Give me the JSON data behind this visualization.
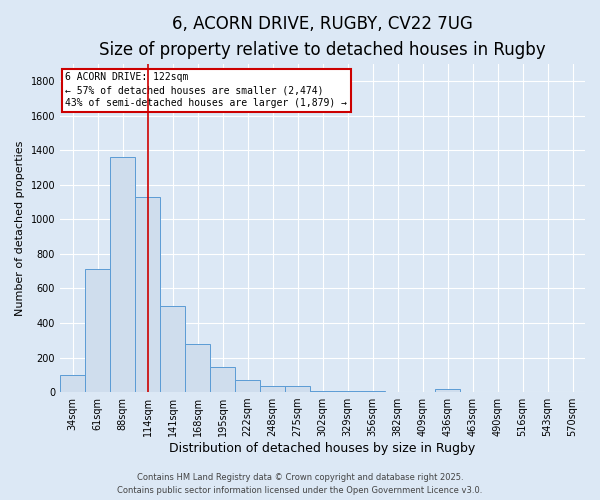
{
  "title1": "6, ACORN DRIVE, RUGBY, CV22 7UG",
  "title2": "Size of property relative to detached houses in Rugby",
  "xlabel": "Distribution of detached houses by size in Rugby",
  "ylabel": "Number of detached properties",
  "bar_labels": [
    "34sqm",
    "61sqm",
    "88sqm",
    "114sqm",
    "141sqm",
    "168sqm",
    "195sqm",
    "222sqm",
    "248sqm",
    "275sqm",
    "302sqm",
    "329sqm",
    "356sqm",
    "382sqm",
    "409sqm",
    "436sqm",
    "463sqm",
    "490sqm",
    "516sqm",
    "543sqm",
    "570sqm"
  ],
  "bar_values": [
    100,
    710,
    1360,
    1130,
    500,
    278,
    148,
    70,
    38,
    35,
    8,
    5,
    4,
    3,
    2,
    20,
    2,
    0,
    0,
    0,
    0
  ],
  "bar_color": "#cfdded",
  "bar_edge_color": "#5b9bd5",
  "ylim": [
    0,
    1900
  ],
  "yticks": [
    0,
    200,
    400,
    600,
    800,
    1000,
    1200,
    1400,
    1600,
    1800
  ],
  "red_line_x": 3,
  "annotation_text": "6 ACORN DRIVE: 122sqm\n← 57% of detached houses are smaller (2,474)\n43% of semi-detached houses are larger (1,879) →",
  "annotation_box_color": "#ffffff",
  "annotation_box_edge": "#cc0000",
  "red_line_color": "#cc0000",
  "background_color": "#dce8f5",
  "plot_bg_color": "#dce8f5",
  "footer1": "Contains HM Land Registry data © Crown copyright and database right 2025.",
  "footer2": "Contains public sector information licensed under the Open Government Licence v3.0.",
  "grid_color": "#ffffff",
  "title1_fontsize": 12,
  "title2_fontsize": 10,
  "ylabel_fontsize": 8,
  "xlabel_fontsize": 9,
  "tick_fontsize": 7,
  "annot_fontsize": 7,
  "footer_fontsize": 6
}
